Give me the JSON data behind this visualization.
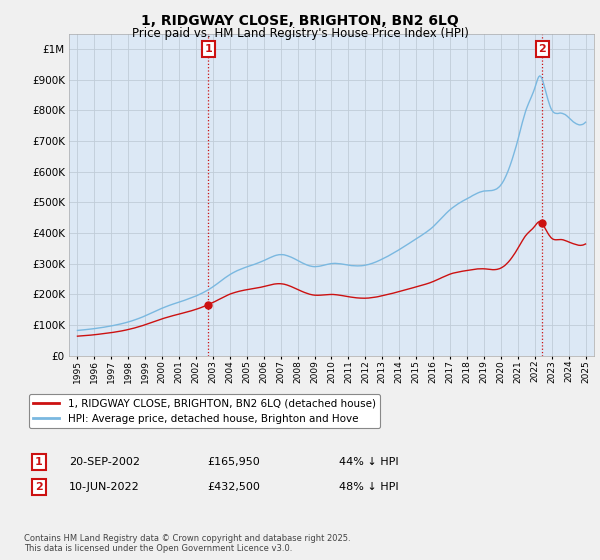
{
  "title": "1, RIDGWAY CLOSE, BRIGHTON, BN2 6LQ",
  "subtitle": "Price paid vs. HM Land Registry's House Price Index (HPI)",
  "hpi_color": "#7ab8e0",
  "sale_color": "#cc1111",
  "background_color": "#f0f0f0",
  "plot_bg_color": "#dce8f5",
  "grid_color": "#c0ccd8",
  "ylim": [
    0,
    1050000
  ],
  "yticks": [
    0,
    100000,
    200000,
    300000,
    400000,
    500000,
    600000,
    700000,
    800000,
    900000,
    1000000
  ],
  "sale1_date_num": 2002.72,
  "sale1_price": 165950,
  "sale2_date_num": 2022.44,
  "sale2_price": 432500,
  "legend_label1": "1, RIDGWAY CLOSE, BRIGHTON, BN2 6LQ (detached house)",
  "legend_label2": "HPI: Average price, detached house, Brighton and Hove",
  "annotation1_date": "20-SEP-2002",
  "annotation1_price": "£165,950",
  "annotation1_hpi": "44% ↓ HPI",
  "annotation2_date": "10-JUN-2022",
  "annotation2_price": "£432,500",
  "annotation2_hpi": "48% ↓ HPI",
  "footnote": "Contains HM Land Registry data © Crown copyright and database right 2025.\nThis data is licensed under the Open Government Licence v3.0."
}
